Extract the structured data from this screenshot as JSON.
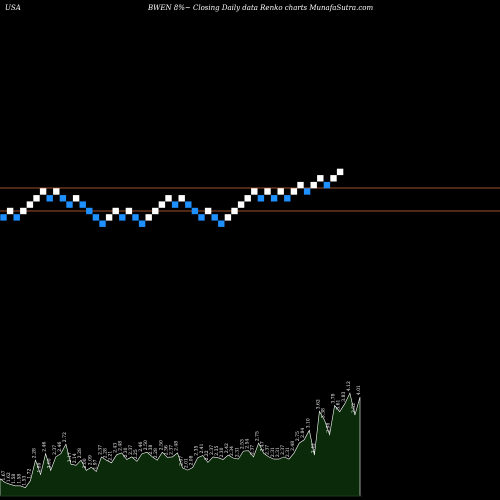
{
  "header": {
    "country": "USA",
    "title": "BWEN 8%~ Closing Daily data Renko charts MunafaSutra.com"
  },
  "colors": {
    "background": "#000000",
    "up_brick": "#ffffff",
    "down_brick": "#1e90ff",
    "level_line": "#a0522d",
    "volume_fill": "#0a2a0a",
    "volume_stroke": "#ffffff"
  },
  "chart_data": {
    "type": "renko",
    "levels": [
      3.53,
      3.07
    ],
    "bricks": [
      {
        "dir": "down",
        "value": 2.92
      },
      {
        "dir": "up",
        "value": 3.07
      },
      {
        "dir": "down",
        "value": 2.92
      },
      {
        "dir": "up",
        "value": 3.07
      },
      {
        "dir": "up",
        "value": 3.22
      },
      {
        "dir": "up",
        "value": 3.37
      },
      {
        "dir": "up",
        "value": 3.53
      },
      {
        "dir": "down",
        "value": 3.37
      },
      {
        "dir": "up",
        "value": 3.53
      },
      {
        "dir": "down",
        "value": 3.37
      },
      {
        "dir": "down",
        "value": 3.22
      },
      {
        "dir": "up",
        "value": 3.37
      },
      {
        "dir": "down",
        "value": 3.22
      },
      {
        "dir": "down",
        "value": 3.07
      },
      {
        "dir": "down",
        "value": 2.92
      },
      {
        "dir": "down",
        "value": 2.77
      },
      {
        "dir": "up",
        "value": 2.92
      },
      {
        "dir": "up",
        "value": 3.07
      },
      {
        "dir": "down",
        "value": 2.92
      },
      {
        "dir": "up",
        "value": 3.07
      },
      {
        "dir": "down",
        "value": 2.92
      },
      {
        "dir": "down",
        "value": 2.77
      },
      {
        "dir": "up",
        "value": 2.92
      },
      {
        "dir": "up",
        "value": 3.07
      },
      {
        "dir": "up",
        "value": 3.22
      },
      {
        "dir": "up",
        "value": 3.37
      },
      {
        "dir": "down",
        "value": 3.22
      },
      {
        "dir": "up",
        "value": 3.37
      },
      {
        "dir": "down",
        "value": 3.22
      },
      {
        "dir": "down",
        "value": 3.07
      },
      {
        "dir": "down",
        "value": 2.92
      },
      {
        "dir": "up",
        "value": 3.07
      },
      {
        "dir": "down",
        "value": 2.92
      },
      {
        "dir": "down",
        "value": 2.77
      },
      {
        "dir": "up",
        "value": 2.92
      },
      {
        "dir": "up",
        "value": 3.07
      },
      {
        "dir": "up",
        "value": 3.22
      },
      {
        "dir": "up",
        "value": 3.37
      },
      {
        "dir": "up",
        "value": 3.53
      },
      {
        "dir": "down",
        "value": 3.37
      },
      {
        "dir": "up",
        "value": 3.53
      },
      {
        "dir": "down",
        "value": 3.37
      },
      {
        "dir": "up",
        "value": 3.53
      },
      {
        "dir": "down",
        "value": 3.37
      },
      {
        "dir": "up",
        "value": 3.53
      },
      {
        "dir": "up",
        "value": 3.68
      },
      {
        "dir": "down",
        "value": 3.53
      },
      {
        "dir": "up",
        "value": 3.68
      },
      {
        "dir": "up",
        "value": 3.84
      },
      {
        "dir": "down",
        "value": 3.68
      },
      {
        "dir": "up",
        "value": 3.84
      },
      {
        "dir": "up",
        "value": 3.99
      }
    ],
    "volume_labels": [
      "1.77",
      "1.67",
      "1.62",
      "1.58",
      "1.58",
      "1.53",
      "1.72",
      "2.28",
      "1.89",
      "2.46",
      "2.00",
      "2.37",
      "2.46",
      "2.72",
      "2.17",
      "2.14",
      "2.28",
      "2.00",
      "2.09",
      "1.97",
      "2.37",
      "2.28",
      "2.21",
      "2.43",
      "2.48",
      "2.30",
      "2.37",
      "2.25",
      "2.46",
      "2.50",
      "2.38",
      "2.28",
      "2.50",
      "2.36",
      "2.37",
      "2.48",
      "2.07",
      "2.01",
      "2.08",
      "2.35",
      "2.41",
      "2.22",
      "2.37",
      "2.35",
      "2.30",
      "2.42",
      "2.34",
      "2.31",
      "2.53",
      "2.54",
      "2.37",
      "2.75",
      "2.47",
      "2.37",
      "2.31",
      "2.31",
      "2.37",
      "2.31",
      "2.48",
      "2.75",
      "2.84",
      "3.10",
      "2.42",
      "3.62",
      "3.38",
      "2.98",
      "3.78",
      "3.61",
      "3.83",
      "4.12",
      "3.52",
      "4.01"
    ],
    "volume_values": [
      1.77,
      1.67,
      1.62,
      1.58,
      1.58,
      1.53,
      1.72,
      2.28,
      1.89,
      2.46,
      2.0,
      2.37,
      2.46,
      2.72,
      2.17,
      2.14,
      2.28,
      2.0,
      2.09,
      1.97,
      2.37,
      2.28,
      2.21,
      2.43,
      2.48,
      2.3,
      2.37,
      2.25,
      2.46,
      2.5,
      2.38,
      2.28,
      2.5,
      2.36,
      2.37,
      2.48,
      2.07,
      2.01,
      2.08,
      2.35,
      2.41,
      2.22,
      2.37,
      2.35,
      2.3,
      2.42,
      2.34,
      2.31,
      2.53,
      2.54,
      2.37,
      2.75,
      2.47,
      2.37,
      2.31,
      2.31,
      2.37,
      2.31,
      2.48,
      2.75,
      2.84,
      3.1,
      2.42,
      3.62,
      3.38,
      2.98,
      3.78,
      3.61,
      3.83,
      4.12,
      3.52,
      4.01
    ]
  }
}
